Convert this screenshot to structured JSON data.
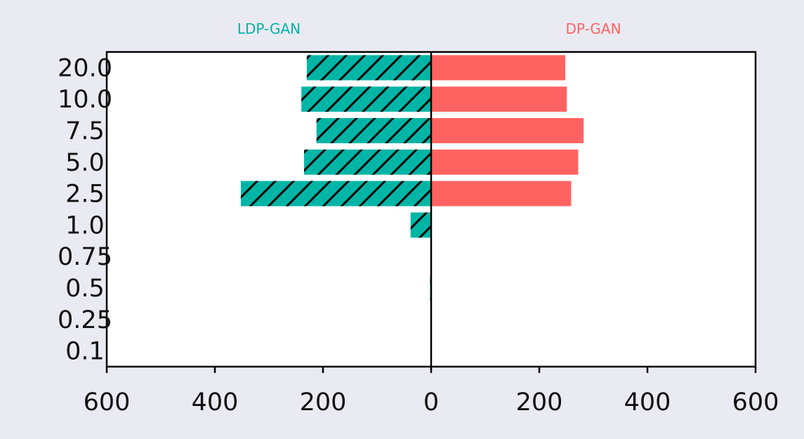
{
  "chart_data": {
    "type": "bar",
    "orientation": "horizontal-diverging",
    "categories": [
      "20.0",
      "10.0",
      "7.5",
      "5.0",
      "2.5",
      "1.0",
      "0.75",
      "0.5",
      "0.25",
      "0.1"
    ],
    "series": [
      {
        "name": "LDP-GAN",
        "side": "left",
        "color": "#00b5a6",
        "hatch": "diagonal",
        "values": [
          230,
          240,
          212,
          235,
          352,
          38,
          0,
          2,
          0,
          0
        ]
      },
      {
        "name": "DP-GAN",
        "side": "right",
        "color": "#ff6361",
        "hatch": "none",
        "values": [
          248,
          251,
          282,
          272,
          259,
          0,
          0,
          0,
          0,
          0
        ]
      }
    ],
    "xlim": [
      -600,
      600
    ],
    "xticks": [
      -600,
      -400,
      -200,
      0,
      200,
      400,
      600
    ],
    "xtick_labels": [
      "600",
      "400",
      "200",
      "0",
      "200",
      "400",
      "600"
    ],
    "xlabel": "",
    "ylabel": "",
    "grid": false,
    "background": "#eaeaf2"
  }
}
